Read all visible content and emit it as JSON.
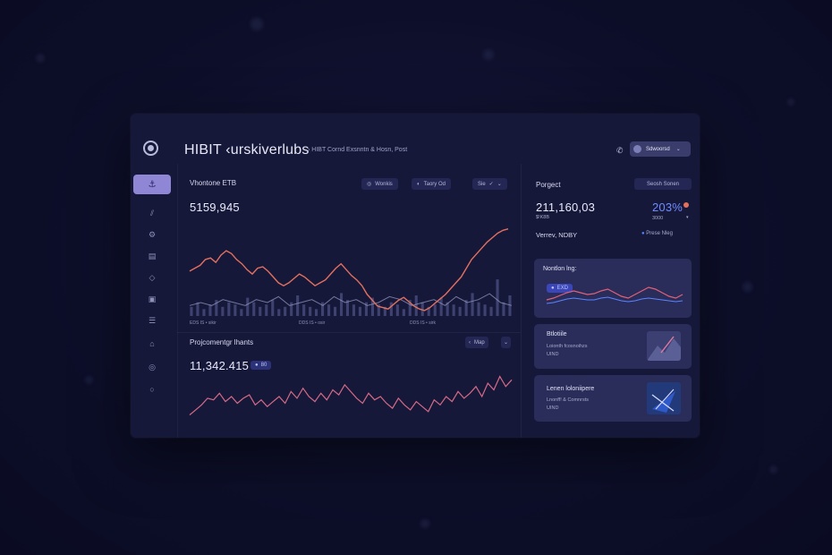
{
  "header": {
    "title": "HIBIT ‹urskiverlubs",
    "breadcrumb": "›   HIBT Cornd Exsnntn &  Hosn,  Post",
    "account_label": "Sdwoorsd",
    "icons": [
      "phone-icon",
      "chevron-down-icon"
    ]
  },
  "sidebar": {
    "items": [
      {
        "name": "anchor-icon",
        "glyph": "⚓",
        "active": true
      },
      {
        "name": "filter-icon",
        "glyph": "⫽"
      },
      {
        "name": "gear-icon",
        "glyph": "⚙"
      },
      {
        "name": "grid-icon",
        "glyph": "▤"
      },
      {
        "name": "diamond-icon",
        "glyph": "◇"
      },
      {
        "name": "folder-icon",
        "glyph": "▣"
      },
      {
        "name": "list-icon",
        "glyph": "☰"
      },
      {
        "name": "home-icon",
        "glyph": "⌂"
      },
      {
        "name": "globe-icon",
        "glyph": "◎"
      },
      {
        "name": "settings-icon",
        "glyph": "○"
      }
    ]
  },
  "main": {
    "top": {
      "title": "Vhontone ETB",
      "value": "5159,945",
      "filters": [
        "Wonkis",
        "Taory Od",
        "Sie"
      ],
      "axis_labels": [
        "EDS IS • sikir",
        "DDS IS  • osir",
        "DDS IS • sirk"
      ]
    },
    "bottom": {
      "title": "Projcomentgr lhants",
      "value": "11,342.415",
      "badge": "80",
      "map_label": "Map"
    }
  },
  "right": {
    "project": {
      "title": "Porgect",
      "button": "Seosh Sonen",
      "value": "211,160,03",
      "sub_value": "$!K8B",
      "percent": "203%",
      "percent_sub": "3000",
      "meta": "Verrev, NDBY",
      "meta_right": "Prese Nleg"
    },
    "cards": [
      {
        "title": "Nontlon lng:",
        "badge": "EXD"
      },
      {
        "title": "Btlotiile",
        "line1": "Loionth fcosnoihzs",
        "line2": "UIND"
      },
      {
        "title": "Lenen loloniipere",
        "line1": "Lnonff! & Comnrsts",
        "line2": "UIND"
      }
    ]
  },
  "colors": {
    "accent": "#8f86d6",
    "line_orange": "#e2705f",
    "line_pink": "#d56a86",
    "highlight": "#4f6bff"
  },
  "chart_data": [
    {
      "type": "line",
      "title": "Vhontone ETB",
      "xlabel": "",
      "ylabel": "",
      "values": [
        32,
        34,
        36,
        40,
        41,
        38,
        43,
        46,
        44,
        40,
        37,
        33,
        30,
        34,
        35,
        32,
        28,
        24,
        22,
        24,
        27,
        30,
        28,
        25,
        22,
        24,
        26,
        30,
        34,
        37,
        33,
        29,
        26,
        22,
        16,
        12,
        8,
        7,
        6,
        9,
        12,
        14,
        11,
        8,
        6,
        5,
        7,
        10,
        13,
        16,
        20,
        24,
        28,
        34,
        40,
        44,
        48,
        52,
        55,
        58,
        60,
        61
      ],
      "ylim": [
        0,
        70
      ]
    },
    {
      "type": "bar",
      "values": [
        4,
        6,
        3,
        5,
        7,
        4,
        6,
        5,
        3,
        8,
        6,
        4,
        5,
        7,
        3,
        4,
        6,
        9,
        5,
        4,
        3,
        6,
        5,
        4,
        10,
        7,
        5,
        4,
        6,
        8,
        5,
        4,
        6,
        5,
        3,
        7,
        9,
        6,
        4,
        5,
        8,
        6,
        5,
        4,
        7,
        10,
        6,
        5,
        4,
        16,
        6,
        9
      ],
      "ylim": [
        0,
        18
      ]
    },
    {
      "type": "line",
      "title": "Projcomentgr lhants",
      "values": [
        8,
        14,
        20,
        28,
        26,
        34,
        24,
        30,
        22,
        28,
        32,
        20,
        26,
        18,
        24,
        30,
        22,
        36,
        28,
        40,
        30,
        24,
        34,
        26,
        38,
        32,
        44,
        36,
        28,
        22,
        34,
        26,
        30,
        22,
        16,
        28,
        20,
        14,
        24,
        18,
        12,
        26,
        20,
        30,
        24,
        36,
        28,
        34,
        42,
        30,
        46,
        38,
        54,
        42,
        50
      ],
      "ylim": [
        0,
        60
      ]
    },
    {
      "type": "line",
      "title": "Nontlon lng:",
      "series": [
        {
          "values": [
            10,
            12,
            15,
            18,
            20,
            18,
            16,
            17,
            20,
            22,
            18,
            14,
            12,
            16,
            20,
            24,
            22,
            18,
            14,
            12,
            16
          ]
        },
        {
          "values": [
            6,
            7,
            9,
            11,
            12,
            11,
            10,
            10,
            12,
            13,
            11,
            9,
            8,
            9,
            11,
            12,
            11,
            10,
            9,
            8,
            9
          ]
        }
      ],
      "ylim": [
        0,
        30
      ]
    }
  ]
}
